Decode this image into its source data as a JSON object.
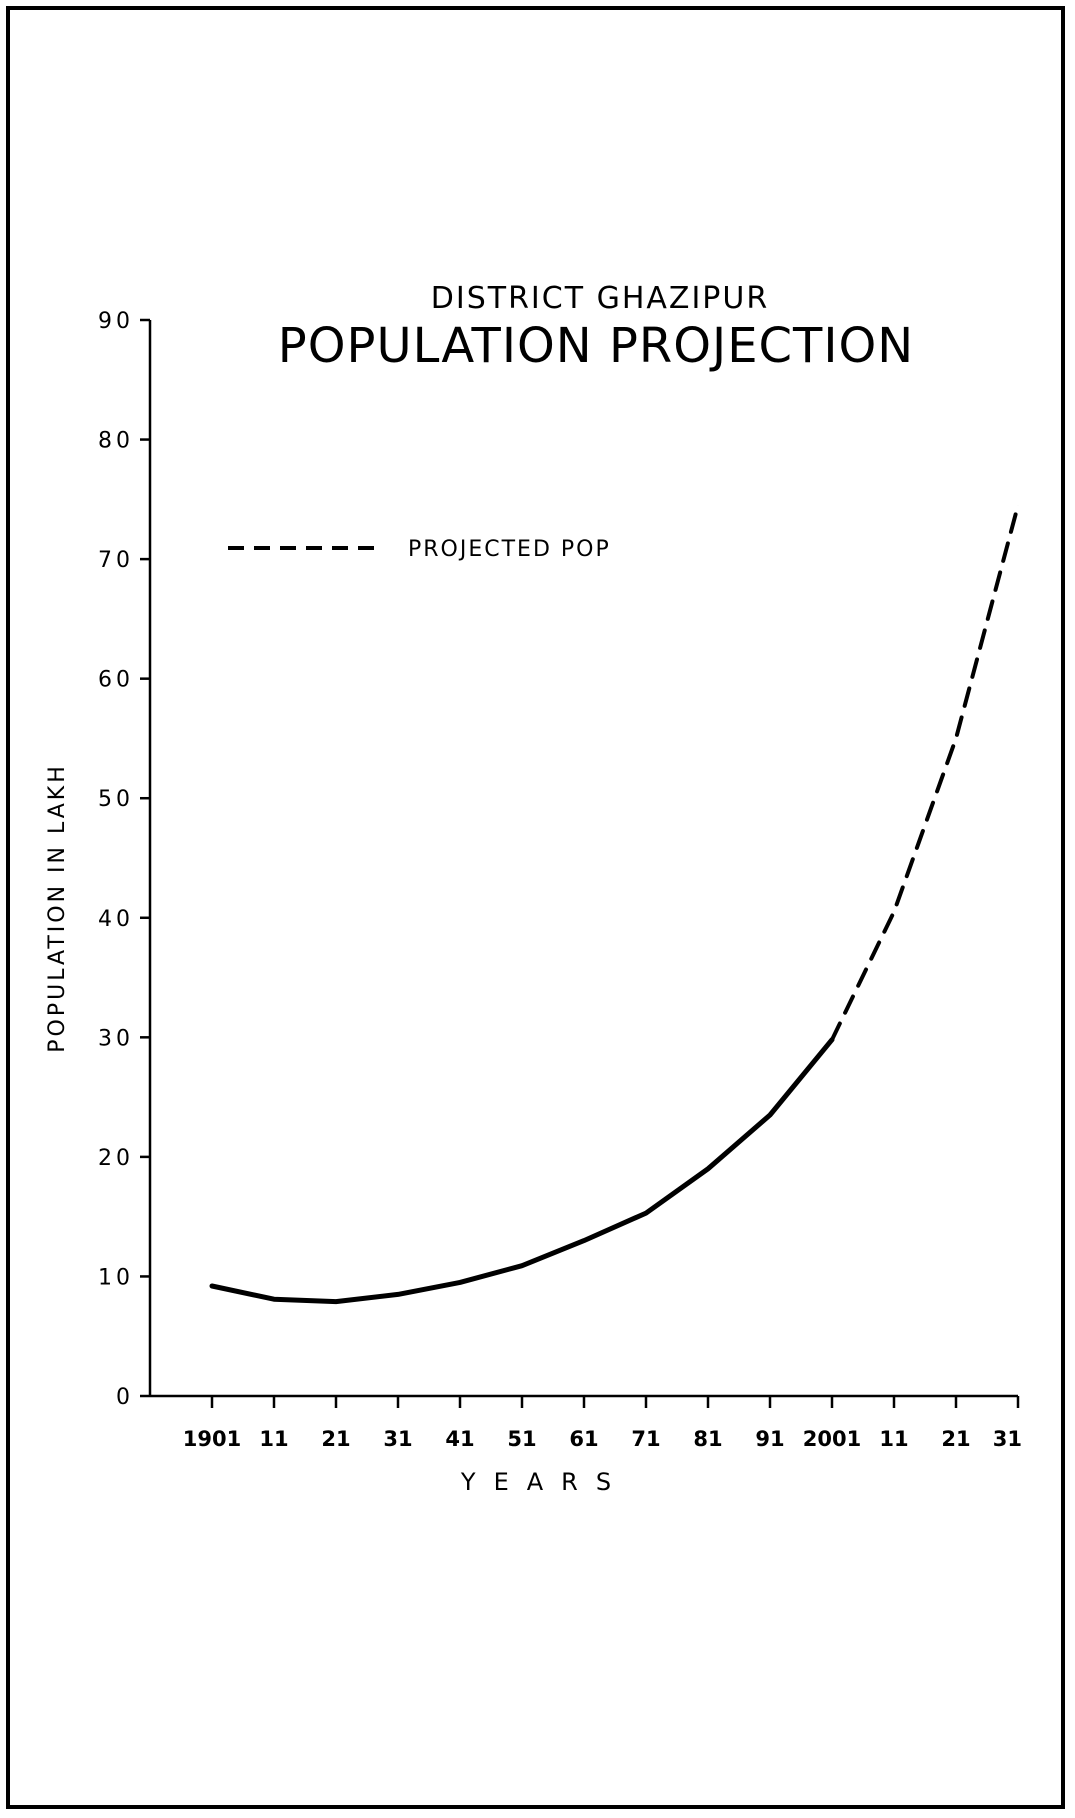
{
  "chart_data": {
    "type": "line",
    "subtitle": "DISTRICT GHAZIPUR",
    "title": "POPULATION PROJECTION",
    "xlabel": "YEARS",
    "ylabel": "POPULATION IN LAKH",
    "ylim": [
      0,
      90
    ],
    "yticks": [
      "0",
      "10",
      "20",
      "30",
      "40",
      "50",
      "60",
      "70",
      "80",
      "90"
    ],
    "x_tick_labels": [
      "1901",
      "11",
      "21",
      "31",
      "41",
      "51",
      "61",
      "71",
      "81",
      "91",
      "2001",
      "11",
      "21",
      "31"
    ],
    "x_years": [
      1901,
      1911,
      1921,
      1931,
      1941,
      1951,
      1961,
      1971,
      1981,
      1991,
      2001,
      2011,
      2021,
      2031
    ],
    "xlim": [
      1891,
      2031
    ],
    "legend": {
      "label": "PROJECTED POP",
      "position": "top-left"
    },
    "series": [
      {
        "style": "solid",
        "x": [
          1901,
          1911,
          1921,
          1931,
          1941,
          1951,
          1961,
          1971,
          1981,
          1991,
          2001
        ],
        "values": [
          9.2,
          8.1,
          7.9,
          8.5,
          9.5,
          10.9,
          13.0,
          15.3,
          19.0,
          23.5,
          29.8
        ]
      },
      {
        "name": "PROJECTED POP",
        "style": "dashed",
        "x": [
          2001,
          2011,
          2021,
          2031
        ],
        "values": [
          29.8,
          40.5,
          55.0,
          74.5
        ]
      }
    ],
    "grid": false
  }
}
